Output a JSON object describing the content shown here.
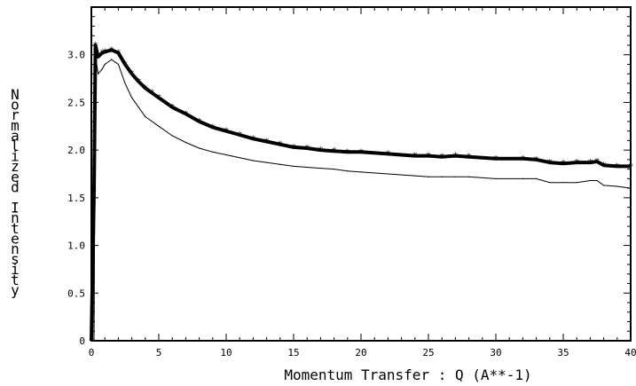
{
  "chart_data": {
    "type": "line",
    "title": "",
    "xlabel": "Momentum Transfer : Q (A**-1)",
    "ylabel": "Normalized Intensity",
    "xlim": [
      0,
      40
    ],
    "ylim": [
      0,
      3.5
    ],
    "x_ticks": [
      "0",
      "5",
      "10",
      "15",
      "20",
      "25",
      "30",
      "35",
      "40"
    ],
    "y_ticks": [
      "0",
      "0.5",
      "1.0",
      "1.5",
      "2.0",
      "2.5",
      "3.0"
    ],
    "grid": false,
    "series": [
      {
        "name": "",
        "style": "line",
        "color": "#000000",
        "x": [
          0,
          0.2,
          0.3,
          0.5,
          0.8,
          1.0,
          1.5,
          2.0,
          2.5,
          3.0,
          3.5,
          4.0,
          4.5,
          5.0,
          6.0,
          7.0,
          8.0,
          9.0,
          10.0,
          11.0,
          12.0,
          13.0,
          14.0,
          15.0,
          16.0,
          17.0,
          18.0,
          19.0,
          20.0,
          22.0,
          24.0,
          25.0,
          26.0,
          27.0,
          28.0,
          30.0,
          32.0,
          33.0,
          34.0,
          35.0,
          36.0,
          37.0,
          37.5,
          38.0,
          39.0,
          40.0
        ],
        "y": [
          0,
          0,
          3.0,
          2.8,
          2.85,
          2.9,
          2.95,
          2.9,
          2.7,
          2.55,
          2.45,
          2.35,
          2.3,
          2.25,
          2.15,
          2.08,
          2.02,
          1.98,
          1.95,
          1.92,
          1.89,
          1.87,
          1.85,
          1.83,
          1.82,
          1.81,
          1.8,
          1.78,
          1.77,
          1.75,
          1.73,
          1.72,
          1.72,
          1.72,
          1.72,
          1.7,
          1.7,
          1.7,
          1.66,
          1.66,
          1.66,
          1.68,
          1.68,
          1.63,
          1.62,
          1.6
        ]
      },
      {
        "name": "",
        "style": "markers",
        "color": "#000000",
        "x": [
          0,
          0.2,
          0.3,
          0.5,
          0.8,
          1.0,
          1.5,
          2.0,
          2.5,
          3.0,
          3.5,
          4.0,
          4.5,
          5.0,
          6.0,
          7.0,
          8.0,
          9.0,
          10.0,
          11.0,
          12.0,
          13.0,
          14.0,
          15.0,
          16.0,
          17.0,
          18.0,
          19.0,
          20.0,
          22.0,
          24.0,
          25.0,
          26.0,
          27.0,
          28.0,
          30.0,
          32.0,
          33.0,
          34.0,
          35.0,
          36.0,
          37.0,
          37.5,
          38.0,
          39.0,
          40.0
        ],
        "y": [
          0,
          1.57,
          3.1,
          2.98,
          3.02,
          3.03,
          3.05,
          3.02,
          2.9,
          2.8,
          2.72,
          2.65,
          2.6,
          2.55,
          2.45,
          2.38,
          2.3,
          2.24,
          2.2,
          2.16,
          2.12,
          2.09,
          2.06,
          2.03,
          2.02,
          2.0,
          1.99,
          1.98,
          1.98,
          1.96,
          1.94,
          1.94,
          1.93,
          1.94,
          1.93,
          1.91,
          1.91,
          1.9,
          1.87,
          1.86,
          1.87,
          1.87,
          1.88,
          1.84,
          1.83,
          1.83
        ]
      }
    ]
  }
}
